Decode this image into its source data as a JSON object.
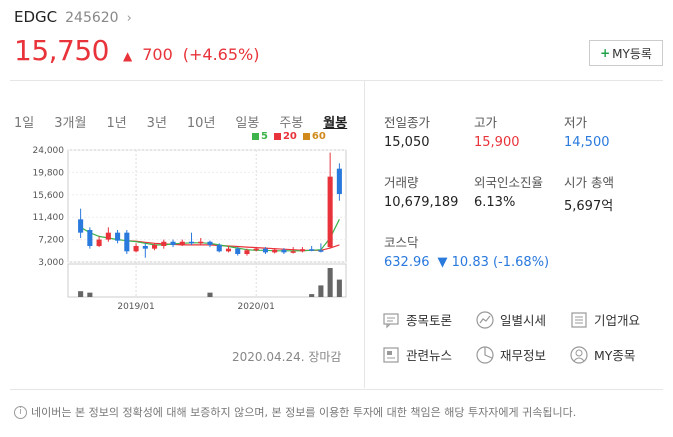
{
  "stock": {
    "name": "EDGC",
    "code": "245620",
    "price": "15,750",
    "change": "700",
    "change_pct": "(+4.65%)"
  },
  "my_button_label": "MY등록",
  "tabs": [
    "1일",
    "3개월",
    "1년",
    "3년",
    "10년",
    "일봉",
    "주봉",
    "월봉"
  ],
  "active_tab": "월봉",
  "stats": {
    "prev_close_label": "전일종가",
    "prev_close": "15,050",
    "high_label": "고가",
    "high": "15,900",
    "low_label": "저가",
    "low": "14,500",
    "volume_label": "거래량",
    "volume": "10,679,189",
    "foreign_label": "외국인소진율",
    "foreign": "6.13%",
    "mcap_label": "시가 총액",
    "mcap": "5,697억"
  },
  "kospi": {
    "label": "코스닥",
    "value": "632.96",
    "change": "10.83 (-1.68%)"
  },
  "links": {
    "discussion": "종목토론",
    "daily": "일별시세",
    "company": "기업개요",
    "news": "관련뉴스",
    "finance": "재무정보",
    "my": "MY종목"
  },
  "date_close": "2020.04.24. 장마감",
  "disclaimer": "네이버는 본 정보의 정확성에 대해 보증하지 않으며, 본 정보를 이용한 투자에 대한 책임은 해당 투자자에게 귀속됩니다.",
  "colors": {
    "up": "#e8333a",
    "down": "#2a79dd",
    "ma5": "#3cb44b",
    "ma20": "#e8333a",
    "ma60": "#d08a1c"
  },
  "chart_data": {
    "type": "candlestick",
    "legend": [
      "5",
      "20",
      "60"
    ],
    "y_ticks": [
      "24,000",
      "19,800",
      "15,600",
      "11,400",
      "7,200",
      "3,000"
    ],
    "x_ticks": [
      "2019/01",
      "2020/01"
    ],
    "ylim": [
      3000,
      24000
    ],
    "candles": [
      {
        "o": 11000,
        "c": 8500,
        "h": 13000,
        "l": 7500
      },
      {
        "o": 9000,
        "c": 6000,
        "h": 9500,
        "l": 5500
      },
      {
        "o": 6000,
        "c": 7200,
        "h": 7800,
        "l": 5800
      },
      {
        "o": 7200,
        "c": 8500,
        "h": 9500,
        "l": 6800
      },
      {
        "o": 8500,
        "c": 7000,
        "h": 9000,
        "l": 6500
      },
      {
        "o": 8500,
        "c": 5000,
        "h": 9000,
        "l": 4500
      },
      {
        "o": 5000,
        "c": 6000,
        "h": 6500,
        "l": 4800
      },
      {
        "o": 6000,
        "c": 5500,
        "h": 6500,
        "l": 3800
      },
      {
        "o": 5500,
        "c": 6200,
        "h": 6500,
        "l": 5200
      },
      {
        "o": 6000,
        "c": 6800,
        "h": 7200,
        "l": 5500
      },
      {
        "o": 6800,
        "c": 6200,
        "h": 7200,
        "l": 5800
      },
      {
        "o": 6200,
        "c": 6800,
        "h": 7200,
        "l": 6000
      },
      {
        "o": 6800,
        "c": 6500,
        "h": 8500,
        "l": 6200
      },
      {
        "o": 6500,
        "c": 6800,
        "h": 7500,
        "l": 6200
      },
      {
        "o": 6800,
        "c": 6200,
        "h": 7000,
        "l": 5800
      },
      {
        "o": 6200,
        "c": 5000,
        "h": 6500,
        "l": 4800
      },
      {
        "o": 5000,
        "c": 5500,
        "h": 6000,
        "l": 4800
      },
      {
        "o": 5500,
        "c": 4500,
        "h": 5800,
        "l": 4200
      },
      {
        "o": 4500,
        "c": 5200,
        "h": 5500,
        "l": 4200
      },
      {
        "o": 5200,
        "c": 5500,
        "h": 5800,
        "l": 5000
      },
      {
        "o": 5500,
        "c": 4800,
        "h": 5800,
        "l": 4500
      },
      {
        "o": 4800,
        "c": 5300,
        "h": 5600,
        "l": 4600
      },
      {
        "o": 5300,
        "c": 4800,
        "h": 5600,
        "l": 4500
      },
      {
        "o": 4800,
        "c": 5000,
        "h": 5800,
        "l": 4600
      },
      {
        "o": 5000,
        "c": 5400,
        "h": 5800,
        "l": 4800
      },
      {
        "o": 5400,
        "c": 5200,
        "h": 6000,
        "l": 5000
      },
      {
        "o": 5200,
        "c": 5000,
        "h": 6500,
        "l": 4800
      },
      {
        "o": 5800,
        "c": 19000,
        "h": 23500,
        "l": 5500
      },
      {
        "o": 20500,
        "c": 15750,
        "h": 21500,
        "l": 14500
      }
    ],
    "ma5": [
      9500,
      8500,
      7800,
      7500,
      7200,
      7000,
      6800,
      6500,
      6200,
      6200,
      6400,
      6500,
      6600,
      6600,
      6500,
      6200,
      5900,
      5600,
      5300,
      5200,
      5200,
      5100,
      5100,
      5100,
      5100,
      5200,
      5300,
      7500,
      11000
    ],
    "ma20": [
      null,
      null,
      null,
      null,
      null,
      7000,
      6900,
      6700,
      6500,
      6400,
      6300,
      6200,
      6200,
      6200,
      6200,
      6100,
      6000,
      5900,
      5800,
      5700,
      5600,
      5500,
      5400,
      5300,
      5200,
      5200,
      5200,
      5600,
      6200
    ],
    "volume": [
      0.2,
      0.15,
      0,
      0,
      0,
      0,
      0,
      0,
      0,
      0,
      0,
      0,
      0,
      0,
      0.15,
      0,
      0,
      0,
      0,
      0,
      0,
      0,
      0,
      0,
      0,
      0.1,
      0.4,
      1.0,
      0.6
    ]
  }
}
